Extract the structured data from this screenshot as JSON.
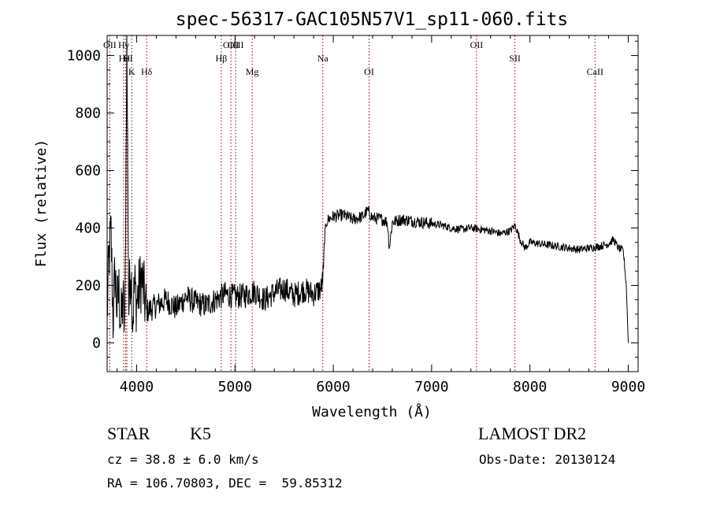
{
  "chart_data": {
    "type": "line",
    "title": "spec-56317-GAC105N57V1_sp11-060.fits",
    "xlabel": "Wavelength (Å)",
    "ylabel": "Flux (relative)",
    "xlim": [
      3700,
      9100
    ],
    "ylim": [
      -100,
      1070
    ],
    "xticks": [
      4000,
      5000,
      6000,
      7000,
      8000,
      9000
    ],
    "yticks": [
      0,
      200,
      400,
      600,
      800,
      1000
    ],
    "series": [
      {
        "name": "flux",
        "color": "#000000",
        "x": [
          3700,
          3720,
          3740,
          3760,
          3780,
          3800,
          3820,
          3840,
          3860,
          3880,
          3900,
          3920,
          3940,
          3960,
          3980,
          4000,
          4050,
          4100,
          4200,
          4300,
          4400,
          4500,
          4600,
          4700,
          4800,
          4900,
          5000,
          5100,
          5200,
          5300,
          5400,
          5500,
          5600,
          5700,
          5800,
          5880,
          5900,
          5910,
          5930,
          5950,
          6000,
          6100,
          6200,
          6300,
          6350,
          6400,
          6500,
          6550,
          6570,
          6600,
          6700,
          6800,
          6900,
          7000,
          7100,
          7200,
          7300,
          7400,
          7500,
          7600,
          7700,
          7800,
          7850,
          7900,
          7950,
          8000,
          8100,
          8200,
          8300,
          8400,
          8500,
          8600,
          8700,
          8800,
          8850,
          8900,
          8950,
          8980,
          9000
        ],
        "y": [
          100,
          300,
          380,
          80,
          250,
          120,
          180,
          60,
          150,
          40,
          1060,
          120,
          280,
          90,
          200,
          140,
          230,
          110,
          130,
          150,
          120,
          160,
          140,
          130,
          150,
          170,
          160,
          165,
          180,
          150,
          175,
          190,
          165,
          185,
          170,
          190,
          250,
          360,
          420,
          430,
          440,
          445,
          430,
          440,
          460,
          435,
          430,
          420,
          330,
          420,
          430,
          425,
          420,
          415,
          410,
          400,
          395,
          400,
          395,
          390,
          380,
          390,
          410,
          360,
          330,
          350,
          345,
          340,
          335,
          330,
          325,
          330,
          335,
          345,
          360,
          330,
          320,
          200,
          0
        ]
      }
    ],
    "line_markers": [
      {
        "label": "Hγ",
        "x": 3868
      },
      {
        "label": "H",
        "x": 3900
      },
      {
        "label": "K",
        "x": 3950
      },
      {
        "label": "OII",
        "x": 3727
      },
      {
        "label": "HeI",
        "x": 3889
      },
      {
        "label": "Hδ",
        "x": 4102
      },
      {
        "label": "OIII",
        "x": 5007
      },
      {
        "label": "Hβ",
        "x": 4861
      },
      {
        "label": "Mg",
        "x": 5175
      },
      {
        "label": "OIII",
        "x": 4959
      },
      {
        "label": "Na",
        "x": 5893
      },
      {
        "label": "OI",
        "x": 6364
      },
      {
        "label": "OII",
        "x": 7457
      },
      {
        "label": "SII",
        "x": 7847
      },
      {
        "label": "CaII",
        "x": 8662
      }
    ],
    "marker_color": "#8b0000"
  },
  "info": {
    "class_label": "STAR",
    "subclass": "K5",
    "survey": "LAMOST DR2",
    "cz": "cz = 38.8 ± 6.0 km/s",
    "obs_date": "Obs-Date: 20130124",
    "coords": "RA = 106.70803, DEC =  59.85312"
  }
}
